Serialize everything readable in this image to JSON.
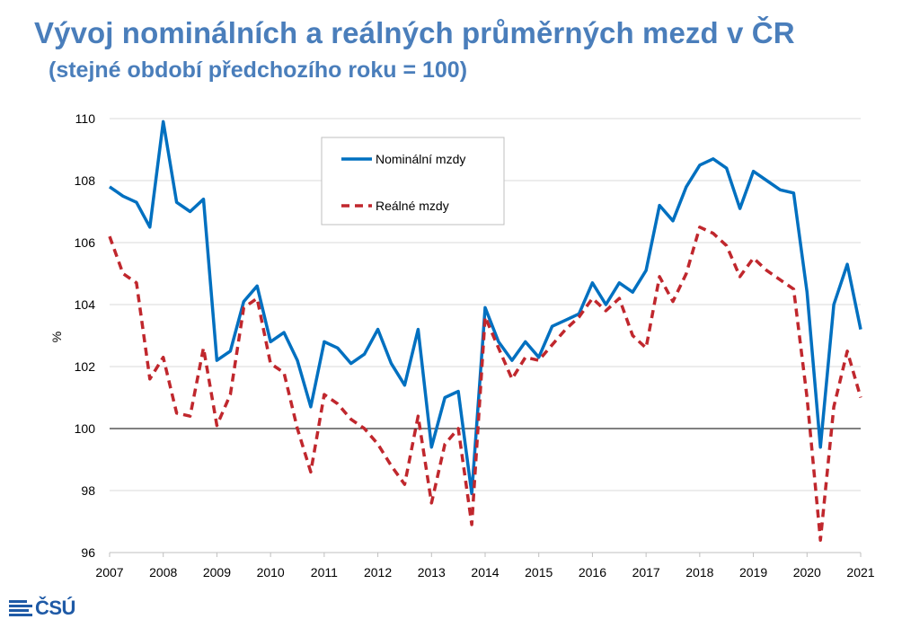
{
  "header": {
    "title": "Vývoj nominálních a reálných průměrných mezd v ČR",
    "subtitle": "(stejné období předchozího roku = 100)"
  },
  "logo": {
    "text": "ČSÚ"
  },
  "colors": {
    "title": "#4a7ebb",
    "nominal": "#0070c0",
    "real": "#c0272d",
    "grid": "#d9d9d9",
    "logo": "#1f5aa6"
  },
  "chart_data": {
    "type": "line",
    "ylabel": "%",
    "ylim": [
      96,
      110
    ],
    "yticks": [
      96,
      98,
      100,
      102,
      104,
      106,
      108,
      110
    ],
    "xlim": [
      2007,
      2021
    ],
    "xticks": [
      "2007",
      "2008",
      "2009",
      "2010",
      "2011",
      "2012",
      "2013",
      "2014",
      "2015",
      "2016",
      "2017",
      "2018",
      "2019",
      "2020",
      "2021"
    ],
    "grid": true,
    "reference_line": 100,
    "legend_position": "top-center",
    "x": [
      2007.0,
      2007.25,
      2007.5,
      2007.75,
      2008.0,
      2008.25,
      2008.5,
      2008.75,
      2009.0,
      2009.25,
      2009.5,
      2009.75,
      2010.0,
      2010.25,
      2010.5,
      2010.75,
      2011.0,
      2011.25,
      2011.5,
      2011.75,
      2012.0,
      2012.25,
      2012.5,
      2012.75,
      2013.0,
      2013.25,
      2013.5,
      2013.75,
      2014.0,
      2014.25,
      2014.5,
      2014.75,
      2015.0,
      2015.25,
      2015.5,
      2015.75,
      2016.0,
      2016.25,
      2016.5,
      2016.75,
      2017.0,
      2017.25,
      2017.5,
      2017.75,
      2018.0,
      2018.25,
      2018.5,
      2018.75,
      2019.0,
      2019.25,
      2019.5,
      2019.75,
      2020.0,
      2020.25,
      2020.5,
      2020.75,
      2021.0
    ],
    "series": [
      {
        "name": "Nominální mzdy",
        "style": "solid",
        "values": [
          107.8,
          107.5,
          107.3,
          106.5,
          109.9,
          107.3,
          107.0,
          107.4,
          102.2,
          102.5,
          104.1,
          104.6,
          102.8,
          103.1,
          102.2,
          100.7,
          102.8,
          102.6,
          102.1,
          102.4,
          103.2,
          102.1,
          101.4,
          103.2,
          99.4,
          101.0,
          101.2,
          97.9,
          103.9,
          102.8,
          102.2,
          102.8,
          102.3,
          103.3,
          103.5,
          103.7,
          104.7,
          104.0,
          104.7,
          104.4,
          105.1,
          107.2,
          106.7,
          107.8,
          108.5,
          108.7,
          108.4,
          107.1,
          108.3,
          108.0,
          107.7,
          107.6,
          104.4,
          99.4,
          104.0,
          105.3,
          103.2
        ]
      },
      {
        "name": "Reálné mzdy",
        "style": "dashed",
        "values": [
          106.2,
          105.0,
          104.7,
          101.6,
          102.3,
          100.5,
          100.4,
          102.6,
          100.1,
          101.1,
          103.9,
          104.2,
          102.1,
          101.8,
          100.0,
          98.6,
          101.1,
          100.8,
          100.3,
          100.0,
          99.5,
          98.8,
          98.2,
          100.4,
          97.6,
          99.5,
          100.0,
          96.9,
          103.6,
          102.6,
          101.6,
          102.3,
          102.2,
          102.7,
          103.2,
          103.6,
          104.2,
          103.8,
          104.2,
          103.0,
          102.6,
          104.9,
          104.1,
          105.0,
          106.5,
          106.3,
          105.9,
          104.9,
          105.5,
          105.1,
          104.8,
          104.5,
          101.0,
          96.4,
          100.7,
          102.5,
          101.0
        ]
      }
    ]
  }
}
